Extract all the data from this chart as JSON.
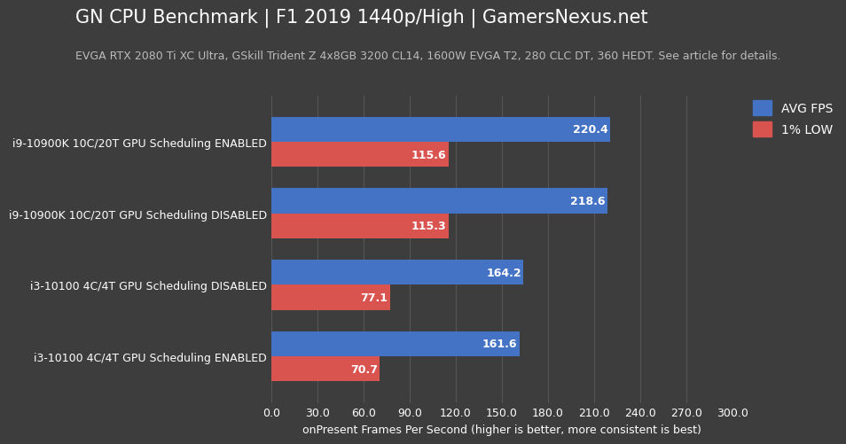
{
  "title": "GN CPU Benchmark | F1 2019 1440p/High | GamersNexus.net",
  "subtitle": "EVGA RTX 2080 Ti XC Ultra, GSkill Trident Z 4x8GB 3200 CL14, 1600W EVGA T2, 280 CLC DT, 360 HEDT. See article for details.",
  "xlabel": "onPresent Frames Per Second (higher is better, more consistent is best)",
  "categories": [
    "i3-10100 4C/4T GPU Scheduling ENABLED",
    "i3-10100 4C/4T GPU Scheduling DISABLED",
    "i9-10900K 10C/20T GPU Scheduling DISABLED",
    "i9-10900K 10C/20T GPU Scheduling ENABLED"
  ],
  "avg_fps": [
    161.6,
    164.2,
    218.6,
    220.4
  ],
  "low_fps": [
    70.7,
    77.1,
    115.3,
    115.6
  ],
  "avg_color": "#4472C4",
  "low_color": "#D9534F",
  "background_color": "#3d3d3d",
  "text_color": "#ffffff",
  "subtitle_color": "#bbbbbb",
  "grid_color": "#555555",
  "bar_height": 0.35,
  "xlim": [
    0,
    300
  ],
  "xticks": [
    0.0,
    30.0,
    60.0,
    90.0,
    120.0,
    150.0,
    180.0,
    210.0,
    240.0,
    270.0,
    300.0
  ],
  "title_fontsize": 15,
  "subtitle_fontsize": 9,
  "tick_fontsize": 9,
  "label_fontsize": 9,
  "legend_fontsize": 10,
  "bar_label_fontsize": 9
}
